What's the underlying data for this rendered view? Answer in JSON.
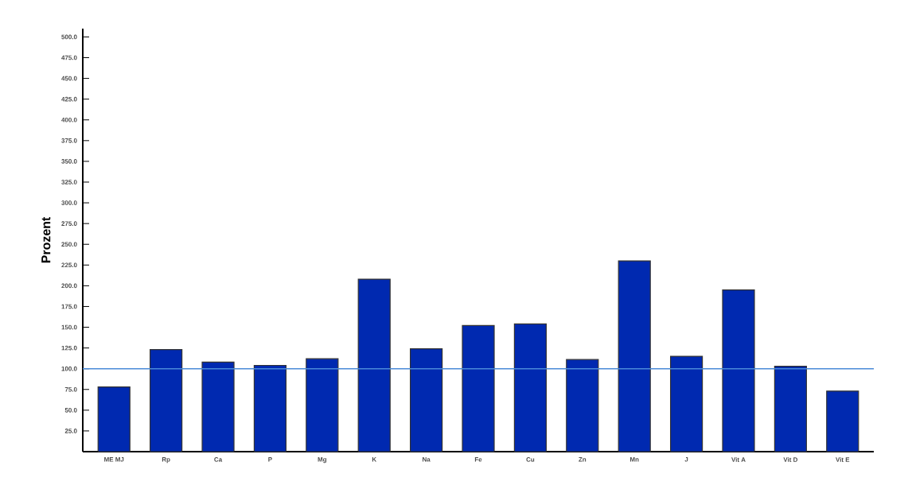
{
  "chart_data": {
    "type": "bar",
    "ylabel": "Prozent",
    "categories": [
      "ME MJ",
      "Rp",
      "Ca",
      "P",
      "Mg",
      "K",
      "Na",
      "Fe",
      "Cu",
      "Zn",
      "Mn",
      "J",
      "Vit A",
      "Vit D",
      "Vit E"
    ],
    "values": [
      78,
      123,
      108,
      104,
      112,
      208,
      124,
      152,
      154,
      111,
      230,
      115,
      195,
      103,
      73
    ],
    "color": "#0029b0",
    "ylim": [
      0,
      510
    ],
    "yticks": [
      {
        "value": 25,
        "label": "25.0"
      },
      {
        "value": 50,
        "label": "50.0"
      },
      {
        "value": 75,
        "label": "75.0"
      },
      {
        "value": 100,
        "label": "100.0"
      },
      {
        "value": 125,
        "label": "125.0"
      },
      {
        "value": 150,
        "label": "150.0"
      },
      {
        "value": 175,
        "label": "175.0"
      },
      {
        "value": 200,
        "label": "200.0"
      },
      {
        "value": 225,
        "label": "225.0"
      },
      {
        "value": 250,
        "label": "250.0"
      },
      {
        "value": 275,
        "label": "275.0"
      },
      {
        "value": 300,
        "label": "300.0"
      },
      {
        "value": 325,
        "label": "325.0"
      },
      {
        "value": 350,
        "label": "350.0"
      },
      {
        "value": 375,
        "label": "375.0"
      },
      {
        "value": 400,
        "label": "400.0"
      },
      {
        "value": 425,
        "label": "425.0"
      },
      {
        "value": 450,
        "label": "450.0"
      },
      {
        "value": 475,
        "label": "475.0"
      },
      {
        "value": 500,
        "label": "500.0"
      }
    ],
    "ref_lines": [
      {
        "axis": "y",
        "value": 100,
        "color": "#4a8ad8"
      }
    ]
  }
}
